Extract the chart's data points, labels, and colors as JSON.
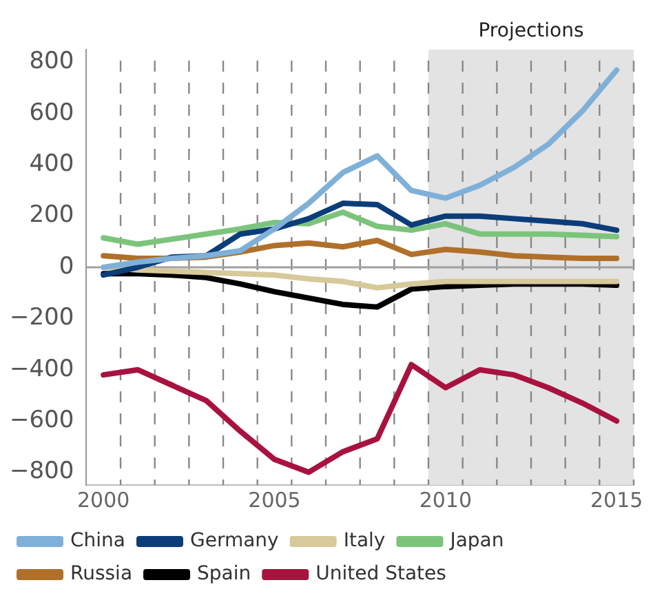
{
  "chart_data": {
    "type": "line",
    "x": [
      2000,
      2001,
      2002,
      2003,
      2004,
      2005,
      2006,
      2007,
      2008,
      2009,
      2010,
      2011,
      2012,
      2013,
      2014,
      2015
    ],
    "series": [
      {
        "name": "China",
        "color": "#7fb0d8",
        "values": [
          0,
          20,
          35,
          45,
          65,
          150,
          250,
          370,
          435,
          300,
          270,
          320,
          390,
          480,
          610,
          770
        ]
      },
      {
        "name": "Germany",
        "color": "#0b3d7a",
        "values": [
          -30,
          0,
          40,
          45,
          130,
          150,
          190,
          250,
          245,
          165,
          200,
          200,
          190,
          180,
          170,
          145
        ]
      },
      {
        "name": "Italy",
        "color": "#d8c99a",
        "values": [
          0,
          -10,
          -15,
          -20,
          -25,
          -30,
          -45,
          -55,
          -80,
          -65,
          -55,
          -55,
          -55,
          -55,
          -55,
          -55
        ]
      },
      {
        "name": "Japan",
        "color": "#7cc47c",
        "values": [
          115,
          90,
          110,
          130,
          150,
          175,
          170,
          215,
          160,
          145,
          170,
          130,
          130,
          130,
          125,
          120
        ]
      },
      {
        "name": "Russia",
        "color": "#b0702a",
        "values": [
          45,
          35,
          35,
          40,
          60,
          85,
          95,
          80,
          105,
          50,
          70,
          60,
          45,
          40,
          35,
          35
        ]
      },
      {
        "name": "Spain",
        "color": "#000000",
        "values": [
          -25,
          -25,
          -30,
          -40,
          -65,
          -95,
          -120,
          -145,
          -155,
          -85,
          -75,
          -70,
          -65,
          -65,
          -65,
          -70
        ]
      },
      {
        "name": "United States",
        "color": "#a8123f",
        "values": [
          -420,
          -400,
          -460,
          -520,
          -640,
          -750,
          -800,
          -720,
          -670,
          -380,
          -470,
          -400,
          -420,
          -470,
          -530,
          -600
        ]
      }
    ],
    "xlim": [
      1999.5,
      2015.5
    ],
    "xticks": [
      2000,
      {
        "value": 2000.5,
        "label": null
      },
      {
        "value": 2001.5,
        "label": null
      },
      {
        "value": 2002.5,
        "label": null
      },
      {
        "value": 2003.5,
        "label": null
      },
      {
        "value": 2004.5,
        "label": null
      },
      2005,
      {
        "value": 2005.5,
        "label": null
      },
      {
        "value": 2006.5,
        "label": null
      },
      {
        "value": 2007.5,
        "label": null
      },
      {
        "value": 2008.5,
        "label": null
      },
      {
        "value": 2009.5,
        "label": null
      },
      2010,
      {
        "value": 2010.5,
        "label": null
      },
      {
        "value": 2011.5,
        "label": null
      },
      {
        "value": 2012.5,
        "label": null
      },
      {
        "value": 2013.5,
        "label": null
      },
      {
        "value": 2014.5,
        "label": null
      },
      2015,
      {
        "value": 2015.5,
        "label": null
      }
    ],
    "ylim": [
      -850,
      850
    ],
    "yticks": [
      {
        "value": -800,
        "label": "−800"
      },
      {
        "value": -600,
        "label": "−600"
      },
      {
        "value": -400,
        "label": "−400"
      },
      {
        "value": -200,
        "label": "−200"
      },
      0,
      200,
      400,
      600,
      800
    ],
    "bands": [
      {
        "axis": "x",
        "from": 2009.5,
        "to": 2015.5,
        "label": "Projections",
        "color": "#e3e3e3"
      }
    ],
    "ref_lines": [
      {
        "axis": "y",
        "value": 0,
        "color": "#a0a0a0"
      }
    ],
    "grid": "x",
    "legend": "bottom",
    "marker": "none",
    "line_style": "solid"
  }
}
